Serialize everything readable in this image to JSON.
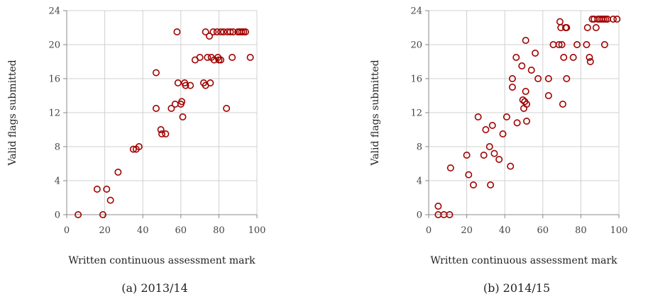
{
  "chart_data": [
    {
      "type": "scatter",
      "caption": "(a) 2013/14",
      "xlabel": "Written continuous assessment mark",
      "ylabel": "Valid flags submitted",
      "xlim": [
        0,
        100
      ],
      "ylim": [
        0,
        24
      ],
      "xticks": [
        "0",
        "20",
        "40",
        "60",
        "80",
        "100"
      ],
      "yticks": [
        "0",
        "4",
        "8",
        "12",
        "16",
        "20",
        "24"
      ],
      "grid": true,
      "marker_color": "#a00000",
      "points": [
        [
          6,
          0
        ],
        [
          16,
          3
        ],
        [
          19,
          0
        ],
        [
          21,
          3
        ],
        [
          23,
          1.7
        ],
        [
          27,
          5
        ],
        [
          35,
          7.7
        ],
        [
          36.5,
          7.7
        ],
        [
          38,
          8
        ],
        [
          47,
          16.7
        ],
        [
          47,
          12.5
        ],
        [
          49.5,
          10
        ],
        [
          50,
          9.5
        ],
        [
          52,
          9.5
        ],
        [
          55,
          12.5
        ],
        [
          57,
          13
        ],
        [
          58,
          21.5
        ],
        [
          58.5,
          15.5
        ],
        [
          60,
          13
        ],
        [
          60.5,
          13.3
        ],
        [
          61,
          11.5
        ],
        [
          62,
          15.5
        ],
        [
          62.5,
          15.2
        ],
        [
          65,
          15.2
        ],
        [
          67.5,
          18.2
        ],
        [
          70,
          18.5
        ],
        [
          72,
          15.5
        ],
        [
          73,
          15.2
        ],
        [
          73,
          21.5
        ],
        [
          74,
          18.5
        ],
        [
          75,
          21
        ],
        [
          75.5,
          15.5
        ],
        [
          76,
          18.5
        ],
        [
          77,
          21.5
        ],
        [
          77.5,
          18.2
        ],
        [
          79,
          21.5
        ],
        [
          79.5,
          18.5
        ],
        [
          80,
          18.2
        ],
        [
          81,
          18.2
        ],
        [
          81,
          21.5
        ],
        [
          82.5,
          21.5
        ],
        [
          84,
          12.5
        ],
        [
          84.5,
          21.5
        ],
        [
          86,
          21.5
        ],
        [
          87,
          18.5
        ],
        [
          87.5,
          21.5
        ],
        [
          90,
          21.5
        ],
        [
          91,
          21.5
        ],
        [
          92,
          21.5
        ],
        [
          93,
          21.5
        ],
        [
          94,
          21.5
        ],
        [
          96.5,
          18.5
        ]
      ]
    },
    {
      "type": "scatter",
      "caption": "(b) 2014/15",
      "xlabel": "Written continuous assessment mark",
      "ylabel": "Valid flags submitted",
      "xlim": [
        0,
        100
      ],
      "ylim": [
        0,
        24
      ],
      "xticks": [
        "0",
        "20",
        "40",
        "60",
        "80",
        "100"
      ],
      "yticks": [
        "0",
        "4",
        "8",
        "12",
        "16",
        "20",
        "24"
      ],
      "grid": true,
      "marker_color": "#a00000",
      "points": [
        [
          5,
          0
        ],
        [
          5,
          1
        ],
        [
          8,
          0
        ],
        [
          11,
          0
        ],
        [
          11.5,
          5.5
        ],
        [
          20,
          7
        ],
        [
          21,
          4.7
        ],
        [
          23.5,
          3.5
        ],
        [
          26,
          11.5
        ],
        [
          29,
          7
        ],
        [
          30,
          10
        ],
        [
          32,
          8
        ],
        [
          32.5,
          3.5
        ],
        [
          33.5,
          10.5
        ],
        [
          34.5,
          7.2
        ],
        [
          37,
          6.5
        ],
        [
          39,
          9.5
        ],
        [
          41,
          11.5
        ],
        [
          43,
          5.7
        ],
        [
          44,
          16
        ],
        [
          44,
          15
        ],
        [
          46,
          18.5
        ],
        [
          46.5,
          10.8
        ],
        [
          49,
          17.5
        ],
        [
          49.5,
          13.5
        ],
        [
          50,
          12.5
        ],
        [
          50.5,
          13.3
        ],
        [
          51,
          14.5
        ],
        [
          51,
          20.5
        ],
        [
          51.5,
          11
        ],
        [
          51.5,
          13
        ],
        [
          54,
          17
        ],
        [
          56,
          19
        ],
        [
          57.5,
          16
        ],
        [
          63,
          16
        ],
        [
          63,
          14
        ],
        [
          65.5,
          20
        ],
        [
          68.5,
          20
        ],
        [
          69,
          22.7
        ],
        [
          69.5,
          22
        ],
        [
          70,
          20
        ],
        [
          70.5,
          13
        ],
        [
          71,
          18.5
        ],
        [
          72,
          22
        ],
        [
          72.5,
          16
        ],
        [
          72.5,
          22
        ],
        [
          76,
          18.5
        ],
        [
          78,
          20
        ],
        [
          83,
          20
        ],
        [
          83.5,
          22
        ],
        [
          84.5,
          18.5
        ],
        [
          85,
          18
        ],
        [
          86,
          23
        ],
        [
          87,
          23
        ],
        [
          88,
          22
        ],
        [
          89,
          23
        ],
        [
          90,
          23
        ],
        [
          91,
          23
        ],
        [
          92,
          23
        ],
        [
          92.5,
          20
        ],
        [
          93,
          23
        ],
        [
          94,
          23
        ],
        [
          97,
          23
        ],
        [
          99,
          23
        ]
      ]
    }
  ]
}
